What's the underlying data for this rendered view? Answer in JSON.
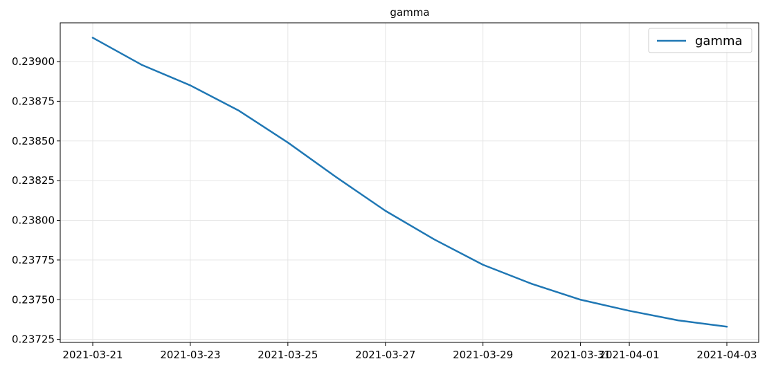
{
  "chart_data": {
    "type": "line",
    "title": "gamma",
    "xlabel": "",
    "ylabel": "",
    "x": [
      "2021-03-21",
      "2021-03-22",
      "2021-03-23",
      "2021-03-24",
      "2021-03-25",
      "2021-03-26",
      "2021-03-27",
      "2021-03-28",
      "2021-03-29",
      "2021-03-30",
      "2021-03-31",
      "2021-04-01",
      "2021-04-02",
      "2021-04-03"
    ],
    "series": [
      {
        "name": "gamma",
        "color": "#1f77b4",
        "values": [
          0.23915,
          0.23898,
          0.23885,
          0.23869,
          0.23849,
          0.23827,
          0.23806,
          0.23788,
          0.23772,
          0.2376,
          0.2375,
          0.23743,
          0.23737,
          0.23733
        ]
      }
    ],
    "x_ticks": [
      "2021-03-21",
      "2021-03-23",
      "2021-03-25",
      "2021-03-27",
      "2021-03-29",
      "2021-03-31",
      "2021-04-01",
      "2021-04-03"
    ],
    "y_ticks": [
      "0.23725",
      "0.23750",
      "0.23775",
      "0.23800",
      "0.23825",
      "0.23850",
      "0.23875",
      "0.23900"
    ],
    "ylim": [
      0.237231,
      0.239244
    ],
    "grid": true,
    "legend": {
      "position": "top-right",
      "entries": [
        "gamma"
      ]
    }
  }
}
